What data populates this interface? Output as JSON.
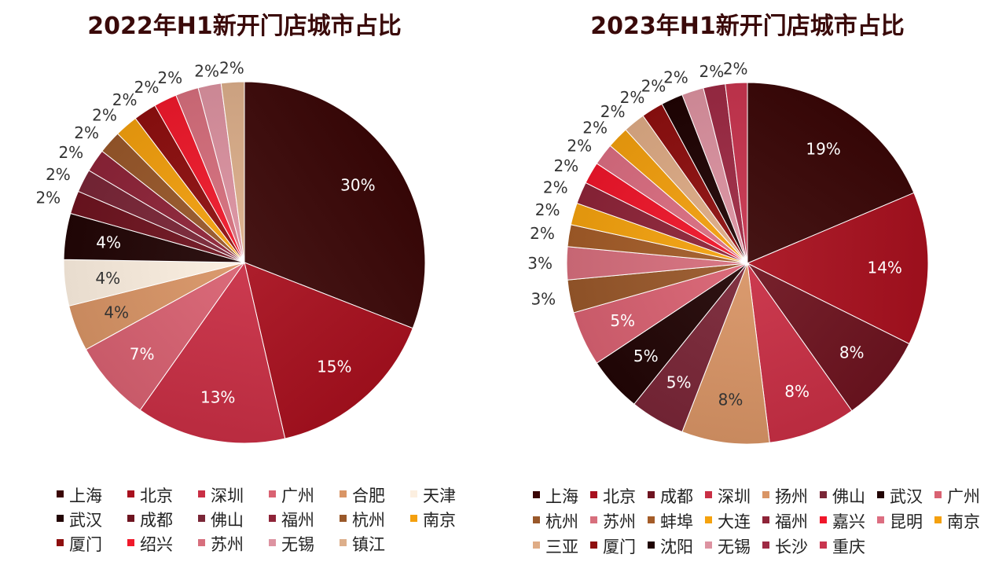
{
  "colors": {
    "上海": "#3a0606",
    "北京": "#a8101e",
    "深圳": "#c92f45",
    "广州": "#d96272",
    "合肥": "#d99566",
    "天津": "#fcefe0",
    "武汉": "#220505",
    "成都": "#6e1420",
    "佛山": "#7a2637",
    "福州": "#8e2438",
    "杭州": "#99582a",
    "南京": "#f4a00e",
    "厦门": "#8e0f0f",
    "绍兴": "#f0192b",
    "苏州": "#d76f7d",
    "无锡": "#dd93a1",
    "镇江": "#ddaf8b",
    "扬州": "#d99566",
    "蚌埠": "#a45c28",
    "大连": "#f5a20e",
    "嘉兴": "#f0162a",
    "昆明": "#dc6e81",
    "三亚": "#dfac86",
    "沈阳": "#1f0303",
    "长沙": "#9e2a44",
    "重庆": "#c9354f"
  },
  "chart_data": [
    {
      "type": "pie",
      "title": "2022年H1新开门店城市占比",
      "labels": [
        "上海",
        "北京",
        "深圳",
        "广州",
        "合肥",
        "天津",
        "武汉",
        "成都",
        "佛山",
        "福州",
        "杭州",
        "南京",
        "厦门",
        "绍兴",
        "苏州",
        "无锡",
        "镇江"
      ],
      "values": [
        30,
        15,
        13,
        7,
        4,
        4,
        4,
        2,
        2,
        2,
        2,
        2,
        2,
        2,
        2,
        2,
        2
      ],
      "data_labels": [
        "30%",
        "15%",
        "13%",
        "7%",
        "4%",
        "4%",
        "4%",
        "2%",
        "2%",
        "2%",
        "2%",
        "2%",
        "2%",
        "2%",
        "2%",
        "2%",
        "2%"
      ],
      "legend_position": "bottom"
    },
    {
      "type": "pie",
      "title": "2023年H1新开门店城市占比",
      "labels": [
        "上海",
        "北京",
        "成都",
        "深圳",
        "扬州",
        "佛山",
        "武汉",
        "广州",
        "杭州",
        "苏州",
        "蚌埠",
        "大连",
        "福州",
        "嘉兴",
        "昆明",
        "南京",
        "三亚",
        "厦门",
        "沈阳",
        "无锡",
        "长沙",
        "重庆"
      ],
      "values": [
        19,
        14,
        8,
        8,
        8,
        5,
        5,
        5,
        3,
        3,
        2,
        2,
        2,
        2,
        2,
        2,
        2,
        2,
        2,
        2,
        2,
        2
      ],
      "data_labels": [
        "19%",
        "14%",
        "8%",
        "8%",
        "8%",
        "5%",
        "5%",
        "5%",
        "3%",
        "3%",
        "2%",
        "2%",
        "2%",
        "2%",
        "2%",
        "2%",
        "2%",
        "2%",
        "2%",
        "2%",
        "2%",
        "2%"
      ],
      "legend_position": "bottom"
    }
  ]
}
